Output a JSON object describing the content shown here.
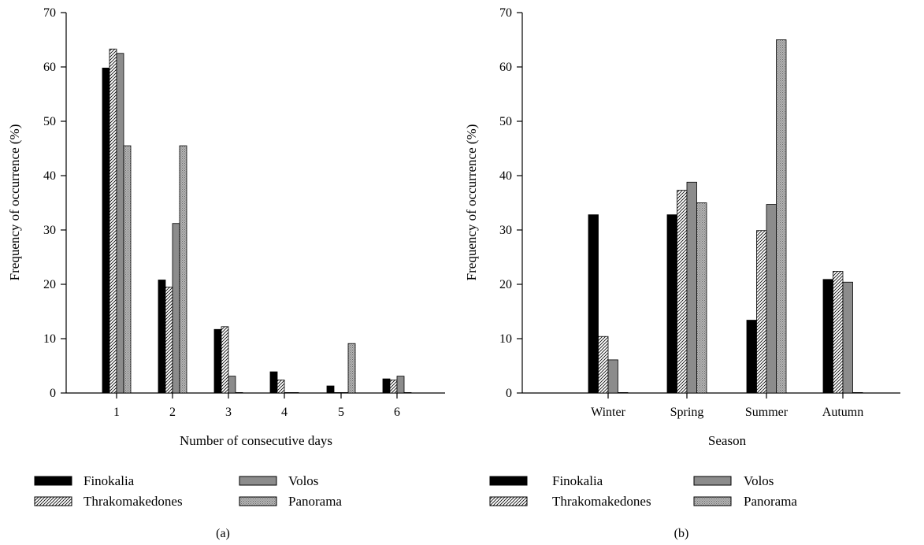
{
  "figure": {
    "charts": [
      {
        "id": "a",
        "caption": "(a)",
        "xlabel": "Number of consecutive days",
        "ylabel": "Frequency of occurrence (%)"
      },
      {
        "id": "b",
        "caption": "(b)",
        "xlabel": "Season",
        "ylabel": "Frequency of occurrence (%)"
      }
    ],
    "legend": [
      {
        "label": "Finokalia",
        "pattern": "solid-black"
      },
      {
        "label": "Thrakomakedones",
        "pattern": "hatched"
      },
      {
        "label": "Volos",
        "pattern": "solid-gray"
      },
      {
        "label": "Panorama",
        "pattern": "dotted-gray"
      }
    ]
  },
  "chart_data": [
    {
      "type": "bar",
      "caption": "(a)",
      "title": "",
      "xlabel": "Number of consecutive days",
      "ylabel": "Frequency of occurrence (%)",
      "categories": [
        "1",
        "2",
        "3",
        "4",
        "5",
        "6"
      ],
      "ylim": [
        0,
        70
      ],
      "yticks": [
        0,
        10,
        20,
        30,
        40,
        50,
        60,
        70
      ],
      "grid": false,
      "legend_position": "bottom",
      "series": [
        {
          "name": "Finokalia",
          "values": [
            59.8,
            20.8,
            11.7,
            3.9,
            1.3,
            2.6
          ]
        },
        {
          "name": "Thrakomakedones",
          "values": [
            63.3,
            19.5,
            12.2,
            2.4,
            0,
            2.4
          ]
        },
        {
          "name": "Volos",
          "values": [
            62.5,
            31.2,
            3.1,
            0,
            0,
            3.1
          ]
        },
        {
          "name": "Panorama",
          "values": [
            45.5,
            45.5,
            0,
            0,
            9.1,
            0
          ]
        }
      ]
    },
    {
      "type": "bar",
      "caption": "(b)",
      "title": "",
      "xlabel": "Season",
      "ylabel": "Frequency of occurrence (%)",
      "categories": [
        "Winter",
        "Spring",
        "Summer",
        "Autumn"
      ],
      "ylim": [
        0,
        70
      ],
      "yticks": [
        0,
        10,
        20,
        30,
        40,
        50,
        60,
        70
      ],
      "grid": false,
      "legend_position": "bottom",
      "series": [
        {
          "name": "Finokalia",
          "values": [
            32.8,
            32.8,
            13.4,
            20.9
          ]
        },
        {
          "name": "Thrakomakedones",
          "values": [
            10.4,
            37.3,
            29.9,
            22.4
          ]
        },
        {
          "name": "Volos",
          "values": [
            6.1,
            38.8,
            34.7,
            20.4
          ]
        },
        {
          "name": "Panorama",
          "values": [
            0,
            35.0,
            65.0,
            0
          ]
        }
      ]
    }
  ],
  "colors": {
    "finokalia": "#000000",
    "thrakomakedones_line": "#000000",
    "volos": "#8c8c8c",
    "panorama": "#a8a8a8",
    "axis": "#000000"
  }
}
